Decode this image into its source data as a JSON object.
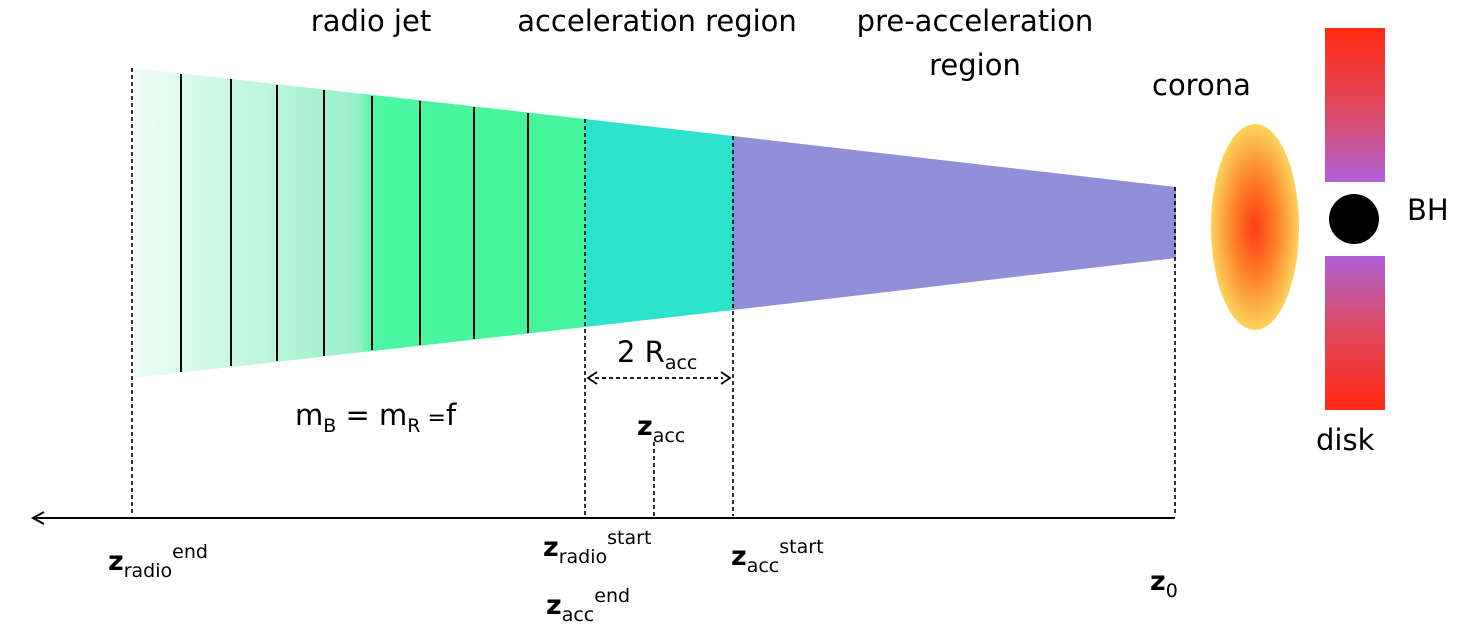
{
  "regions": {
    "radio_jet": "radio jet",
    "acceleration": "acceleration region",
    "pre_acceleration_line1": "pre-acceleration",
    "pre_acceleration_line2": "region"
  },
  "objects": {
    "corona": "corona",
    "bh": "BH",
    "disk": "disk"
  },
  "equation": {
    "m1": "m",
    "m1_sub": "B",
    "eq1": " = ",
    "m2": "m",
    "m2_sub": "R",
    "eq2": " =",
    "f": "f"
  },
  "dimension": {
    "prefix": "2 R",
    "sub": "acc"
  },
  "z_labels": {
    "zacc": {
      "base": "z",
      "sub": "acc"
    },
    "zradio_end": {
      "base": "z",
      "sub": "radio",
      "sup": "end"
    },
    "zradio_start": {
      "base": "z",
      "sub": "radio",
      "sup": "start"
    },
    "zacc_end": {
      "base": "z",
      "sub": "acc",
      "sup": "end"
    },
    "zacc_start": {
      "base": "z",
      "sub": "acc",
      "sup": "start"
    },
    "z0": {
      "base": "z",
      "sub": "0"
    }
  },
  "colors": {
    "radio_jet_light": "#eefdf6",
    "radio_jet_dark": "#47f79f",
    "acceleration": "#2de3cb",
    "pre_acceleration": "#918fd8",
    "corona_core": "#ff3a12",
    "corona_edge": "#fbd05a",
    "disk_outer": "#ff2a12",
    "disk_inner": "#b061d6",
    "bh": "#000000"
  }
}
